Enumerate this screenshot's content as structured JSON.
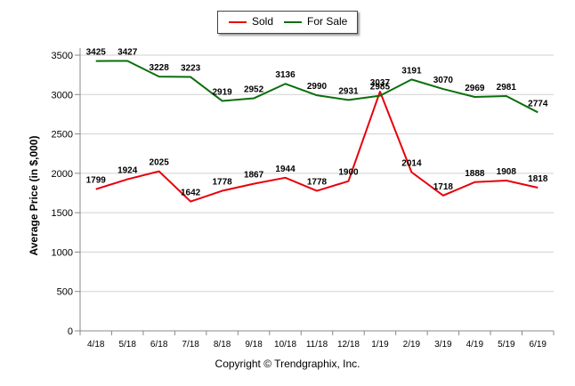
{
  "chart_data": {
    "type": "line",
    "categories": [
      "4/18",
      "5/18",
      "6/18",
      "7/18",
      "8/18",
      "9/18",
      "10/18",
      "11/18",
      "12/18",
      "1/19",
      "2/19",
      "3/19",
      "4/19",
      "5/19",
      "6/19"
    ],
    "series": [
      {
        "name": "Sold",
        "color": "#e8000b",
        "values": [
          1799,
          1924,
          2025,
          1642,
          1778,
          1867,
          1944,
          1778,
          1900,
          3037,
          2014,
          1718,
          1888,
          1908,
          1818
        ]
      },
      {
        "name": "For Sale",
        "color": "#0b6e0b",
        "values": [
          3425,
          3427,
          3228,
          3223,
          2919,
          2952,
          3136,
          2990,
          2931,
          2985,
          3191,
          3070,
          2969,
          2981,
          2774
        ]
      }
    ],
    "ylabel": "Average Price (in $,000)",
    "xlabel": "",
    "ylim": [
      0,
      3500
    ],
    "yticks": [
      0,
      500,
      1000,
      1500,
      2000,
      2500,
      3000,
      3500
    ],
    "grid": true,
    "legend": "top-center"
  },
  "footer": {
    "copyright": "Copyright © Trendgraphix, Inc."
  }
}
